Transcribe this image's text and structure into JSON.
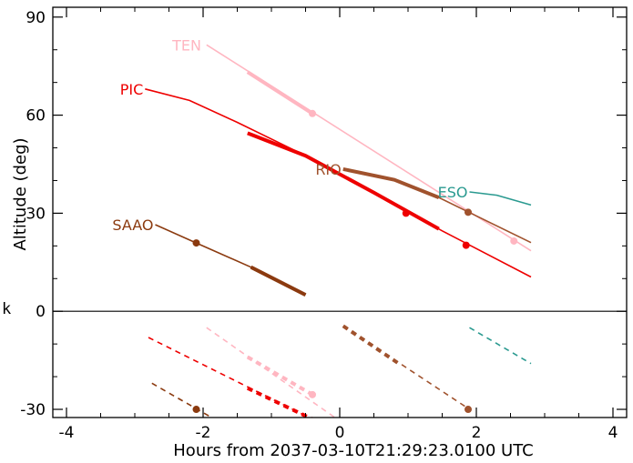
{
  "chart_data": {
    "type": "line",
    "title": "",
    "xlabel": "Hours from 2037-03-10T21:29:23.0100 UTC",
    "ylabel": "Altitude (deg)",
    "xlim": [
      -4.2,
      4.2
    ],
    "ylim": [
      -32.5,
      93
    ],
    "xticks": [
      -4,
      -2,
      0,
      2,
      4
    ],
    "xtick_labels": [
      "-4",
      "-2",
      "0",
      "2",
      "4"
    ],
    "yticks": [
      -30,
      0,
      30,
      60,
      90
    ],
    "ytick_labels": [
      "-30",
      "0",
      "30",
      "60",
      "90"
    ],
    "left_fragment_text": "k",
    "zero_line": true,
    "grid": false,
    "series": [
      {
        "name": "TEN",
        "color": "#ffb6c1",
        "label_at": [
          -2.0,
          81.5
        ],
        "line": [
          [
            -1.95,
            81.5
          ],
          [
            2.8,
            18.5
          ]
        ],
        "thick": [
          [
            -1.35,
            73.2
          ],
          [
            -0.4,
            60.5
          ]
        ],
        "markers": [
          [
            -0.4,
            60.5
          ],
          [
            2.55,
            21.5
          ]
        ],
        "dashed": [
          [
            -1.95,
            -5
          ],
          [
            0.1,
            -35
          ]
        ],
        "dashed_thick": [
          [
            -1.35,
            -14
          ],
          [
            -0.4,
            -25.5
          ]
        ],
        "dashed_markers": [
          [
            -0.4,
            -25.5
          ]
        ]
      },
      {
        "name": "PIC",
        "color": "#ee0000",
        "label_at": [
          -2.85,
          68
        ],
        "line": [
          [
            -2.85,
            68
          ],
          [
            -2.2,
            64.5
          ],
          [
            -1.5,
            57.8
          ],
          [
            -0.5,
            47.6
          ],
          [
            0.5,
            36.3
          ],
          [
            1.5,
            24.6
          ],
          [
            2.8,
            10.5
          ]
        ],
        "thick": [
          [
            -1.35,
            54.5
          ],
          [
            -0.5,
            47.6
          ],
          [
            0.5,
            36.3
          ],
          [
            1.45,
            25.2
          ]
        ],
        "markers": [
          [
            0.97,
            30
          ],
          [
            1.85,
            20.2
          ]
        ],
        "dashed": [
          [
            -2.8,
            -8
          ],
          [
            -0.4,
            -33
          ]
        ],
        "dashed_thick": [
          [
            -1.35,
            -23.5
          ],
          [
            -0.4,
            -33
          ]
        ],
        "dashed_markers": []
      },
      {
        "name": "RIO",
        "color": "#a0522d",
        "label_at": [
          0.05,
          43.5
        ],
        "line": [
          [
            0.05,
            43.5
          ],
          [
            0.8,
            40.2
          ],
          [
            1.45,
            34.8
          ],
          [
            1.9,
            30.2
          ],
          [
            2.8,
            21
          ]
        ],
        "thick": [
          [
            0.05,
            43.5
          ],
          [
            0.8,
            40.2
          ],
          [
            1.45,
            34.8
          ]
        ],
        "markers": [
          [
            1.88,
            30.3
          ]
        ],
        "dashed": [
          [
            0.05,
            -4.5
          ],
          [
            1.9,
            -30
          ]
        ],
        "dashed_thick": [
          [
            0.05,
            -4.5
          ],
          [
            0.9,
            -16.5
          ]
        ],
        "dashed_markers": [
          [
            1.88,
            -30
          ]
        ]
      },
      {
        "name": "ESO",
        "color": "#2a9a90",
        "label_at": [
          1.9,
          36.5
        ],
        "line": [
          [
            1.9,
            36.5
          ],
          [
            2.3,
            35.5
          ],
          [
            2.8,
            32.5
          ]
        ],
        "thick": [],
        "markers": [],
        "dashed": [
          [
            1.9,
            -5
          ],
          [
            2.8,
            -16
          ]
        ],
        "dashed_thick": [],
        "dashed_markers": []
      },
      {
        "name": "SAAO",
        "color": "#8b3a0f",
        "label_at": [
          -2.7,
          26.5
        ],
        "line": [
          [
            -2.7,
            26.5
          ],
          [
            -2.1,
            20.9
          ],
          [
            -1.3,
            13.5
          ],
          [
            -0.5,
            5
          ]
        ],
        "thick": [
          [
            -1.3,
            13.5
          ],
          [
            -0.5,
            5
          ]
        ],
        "markers": [
          [
            -2.1,
            20.9
          ]
        ],
        "dashed": [
          [
            -2.75,
            -22
          ],
          [
            -1.5,
            -37
          ]
        ],
        "dashed_thick": [],
        "dashed_markers": [
          [
            -2.1,
            -30
          ]
        ]
      }
    ]
  }
}
